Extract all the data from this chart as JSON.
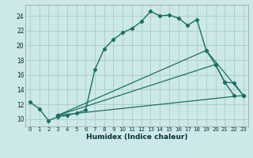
{
  "xlabel": "Humidex (Indice chaleur)",
  "background_color": "#cde8e8",
  "grid_color": "#a8cccc",
  "line_color": "#1a7060",
  "xlim": [
    -0.5,
    23.5
  ],
  "ylim": [
    9.0,
    25.5
  ],
  "xticks": [
    0,
    1,
    2,
    3,
    4,
    5,
    6,
    7,
    8,
    9,
    10,
    11,
    12,
    13,
    14,
    15,
    16,
    17,
    18,
    19,
    20,
    21,
    22,
    23
  ],
  "yticks": [
    10,
    12,
    14,
    16,
    18,
    20,
    22,
    24
  ],
  "main_x": [
    0,
    1,
    2,
    3,
    4,
    5,
    6,
    7,
    8,
    9,
    10,
    11,
    12,
    13,
    14,
    15,
    16,
    17,
    18,
    19,
    20,
    21,
    22
  ],
  "main_y": [
    12.3,
    11.4,
    9.8,
    10.3,
    10.5,
    10.8,
    11.2,
    16.7,
    19.5,
    20.8,
    21.7,
    22.3,
    23.2,
    24.6,
    24.0,
    24.1,
    23.7,
    22.7,
    23.5,
    19.3,
    17.4,
    15.0,
    13.2
  ],
  "line1_x": [
    3,
    23
  ],
  "line1_y": [
    10.5,
    13.2
  ],
  "line2_x": [
    3,
    20,
    21,
    22,
    23
  ],
  "line2_y": [
    10.5,
    17.4,
    15.0,
    14.9,
    13.2
  ],
  "line3_x": [
    3,
    19,
    23
  ],
  "line3_y": [
    10.5,
    19.3,
    13.2
  ]
}
